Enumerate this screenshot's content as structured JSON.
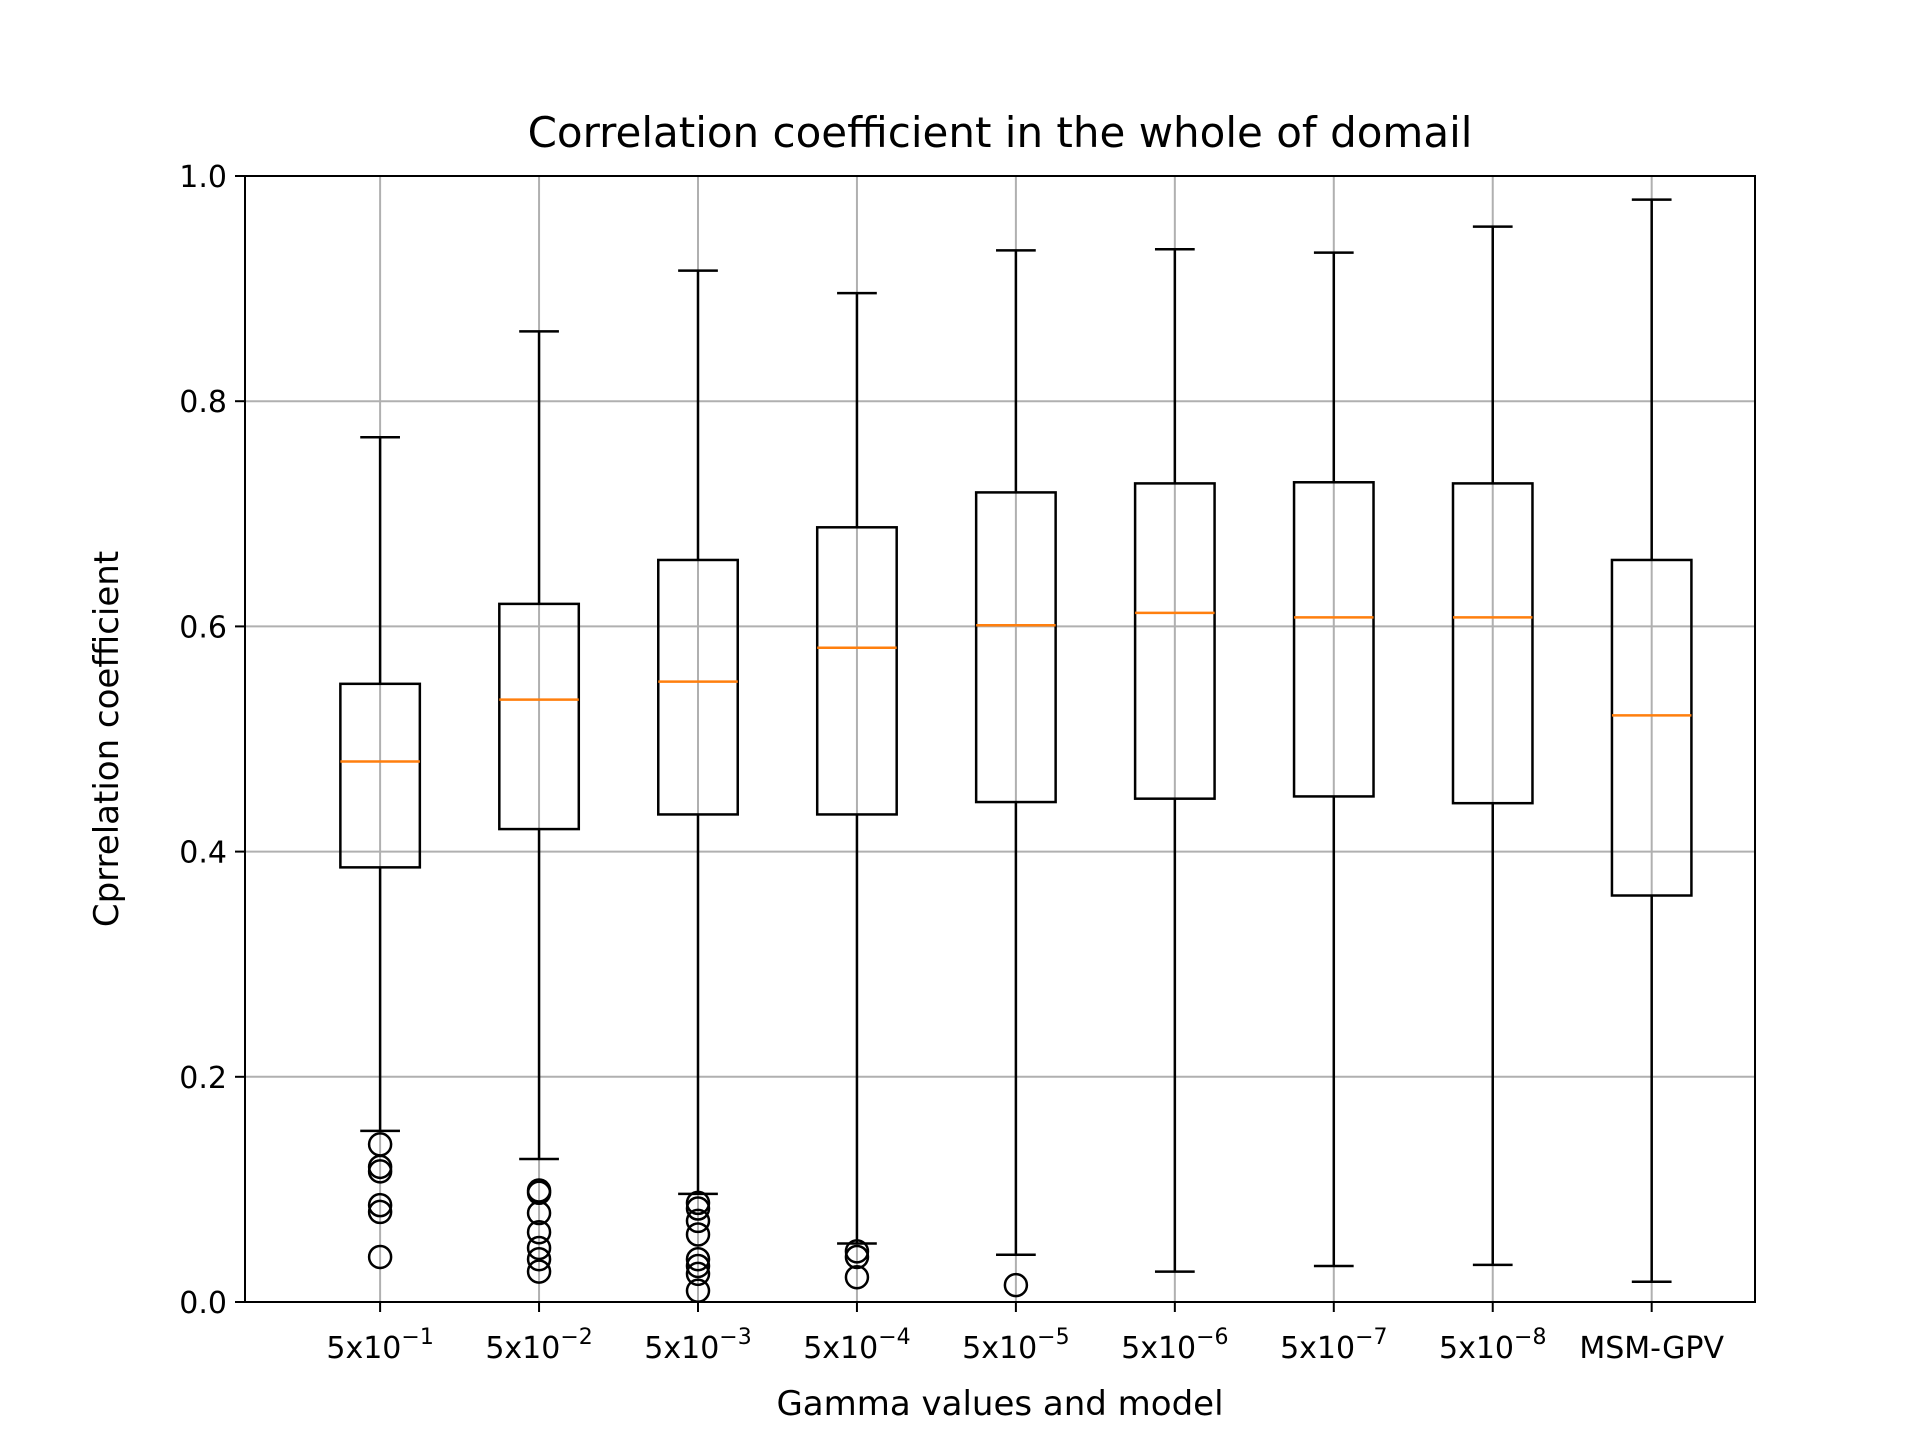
{
  "chart_data": {
    "type": "box",
    "title": "Correlation coefficient in the whole of domail",
    "xlabel": "Gamma values and model",
    "ylabel": "Cprrelation coefficient",
    "ylim": [
      0.0,
      1.0
    ],
    "yticks": [
      "0.0",
      "0.2",
      "0.4",
      "0.6",
      "0.8",
      "1.0"
    ],
    "grid": true,
    "colors": {
      "box": "#000000",
      "median": "#ff7f0e",
      "grid": "#b0b0b0"
    },
    "categories": [
      {
        "base": "5x10",
        "exp": "−1"
      },
      {
        "base": "5x10",
        "exp": "−2"
      },
      {
        "base": "5x10",
        "exp": "−3"
      },
      {
        "base": "5x10",
        "exp": "−4"
      },
      {
        "base": "5x10",
        "exp": "−5"
      },
      {
        "base": "5x10",
        "exp": "−6"
      },
      {
        "base": "5x10",
        "exp": "−7"
      },
      {
        "base": "5x10",
        "exp": "−8"
      },
      {
        "base": "MSM-GPV",
        "exp": ""
      }
    ],
    "boxes": [
      {
        "whisker_low": 0.152,
        "q1": 0.386,
        "median": 0.48,
        "q3": 0.549,
        "whisker_high": 0.768,
        "outliers": [
          0.14,
          0.12,
          0.116,
          0.086,
          0.08,
          0.04
        ]
      },
      {
        "whisker_low": 0.127,
        "q1": 0.42,
        "median": 0.535,
        "q3": 0.62,
        "whisker_high": 0.862,
        "outliers": [
          0.099,
          0.097,
          0.079,
          0.062,
          0.048,
          0.038,
          0.027
        ]
      },
      {
        "whisker_low": 0.096,
        "q1": 0.433,
        "median": 0.551,
        "q3": 0.659,
        "whisker_high": 0.916,
        "outliers": [
          0.088,
          0.083,
          0.072,
          0.06,
          0.038,
          0.032,
          0.025,
          0.01
        ]
      },
      {
        "whisker_low": 0.052,
        "q1": 0.433,
        "median": 0.581,
        "q3": 0.688,
        "whisker_high": 0.896,
        "outliers": [
          0.045,
          0.04,
          0.022
        ]
      },
      {
        "whisker_low": 0.042,
        "q1": 0.444,
        "median": 0.601,
        "q3": 0.719,
        "whisker_high": 0.934,
        "outliers": [
          0.015
        ]
      },
      {
        "whisker_low": 0.027,
        "q1": 0.447,
        "median": 0.612,
        "q3": 0.727,
        "whisker_high": 0.935,
        "outliers": []
      },
      {
        "whisker_low": 0.032,
        "q1": 0.449,
        "median": 0.608,
        "q3": 0.728,
        "whisker_high": 0.932,
        "outliers": []
      },
      {
        "whisker_low": 0.033,
        "q1": 0.443,
        "median": 0.608,
        "q3": 0.727,
        "whisker_high": 0.955,
        "outliers": []
      },
      {
        "whisker_low": 0.018,
        "q1": 0.361,
        "median": 0.521,
        "q3": 0.659,
        "whisker_high": 0.979,
        "outliers": []
      }
    ]
  }
}
